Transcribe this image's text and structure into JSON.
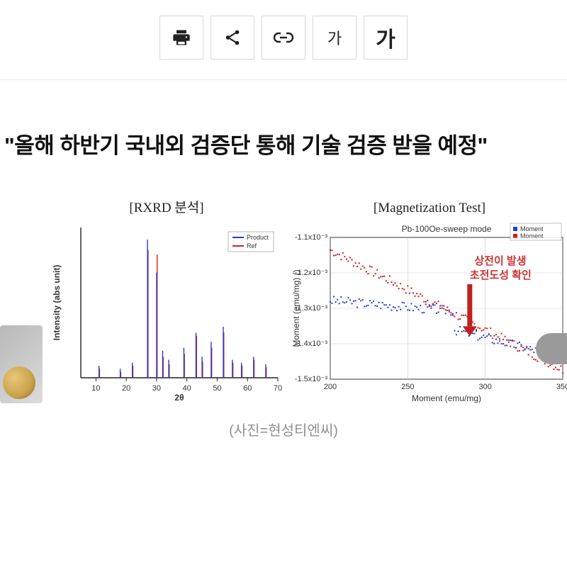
{
  "toolbar": {
    "print_label": "🖨",
    "share_label": "<",
    "link_label": "⊂⊃",
    "textsize_small": "가",
    "textsize_large": "가"
  },
  "headline": "\"올해 하반기 국내외 검증단 통해 기술 검증 받을 예정\"",
  "caption": "(사진=현성티엔씨)",
  "rxrd_chart": {
    "type": "line",
    "title": "[RXRD 분석]",
    "xlabel": "2θ",
    "ylabel": "Intensity (abs unit)",
    "xlim": [
      5,
      70
    ],
    "ylim": [
      0,
      100
    ],
    "xticks": [
      10,
      20,
      30,
      40,
      50,
      60,
      70
    ],
    "legend": [
      "Product",
      "Ref"
    ],
    "legend_colors": [
      "#2040d8",
      "#d82020"
    ],
    "peaks_blue": [
      {
        "x": 11,
        "h": 8
      },
      {
        "x": 18,
        "h": 6
      },
      {
        "x": 22,
        "h": 10
      },
      {
        "x": 27,
        "h": 92
      },
      {
        "x": 30,
        "h": 70
      },
      {
        "x": 32,
        "h": 18
      },
      {
        "x": 34,
        "h": 12
      },
      {
        "x": 39,
        "h": 20
      },
      {
        "x": 43,
        "h": 30
      },
      {
        "x": 45,
        "h": 14
      },
      {
        "x": 48,
        "h": 24
      },
      {
        "x": 52,
        "h": 34
      },
      {
        "x": 55,
        "h": 12
      },
      {
        "x": 58,
        "h": 10
      },
      {
        "x": 62,
        "h": 14
      },
      {
        "x": 66,
        "h": 9
      }
    ],
    "peaks_red": [
      {
        "x": 11,
        "h": 6
      },
      {
        "x": 18,
        "h": 4
      },
      {
        "x": 22,
        "h": 8
      },
      {
        "x": 27,
        "h": 85
      },
      {
        "x": 30,
        "h": 82
      },
      {
        "x": 32,
        "h": 14
      },
      {
        "x": 34,
        "h": 9
      },
      {
        "x": 39,
        "h": 16
      },
      {
        "x": 43,
        "h": 28
      },
      {
        "x": 45,
        "h": 11
      },
      {
        "x": 48,
        "h": 20
      },
      {
        "x": 52,
        "h": 30
      },
      {
        "x": 55,
        "h": 10
      },
      {
        "x": 58,
        "h": 8
      },
      {
        "x": 62,
        "h": 12
      },
      {
        "x": 66,
        "h": 7
      }
    ],
    "line_colors": {
      "blue": "#2040d8",
      "red": "#d82020"
    },
    "axis_color": "#222222",
    "background": "#ffffff"
  },
  "mag_chart": {
    "type": "scatter",
    "title": "[Magnetization Test]",
    "subtitle": "Pb-100Oe-sweep mode",
    "xlabel": "Moment (emu/mg)",
    "ylabel": "Moment (emu/mg) ()",
    "annotation_main": "상전이 발생",
    "annotation_sub": "초전도성 확인",
    "arrow_color": "#c02020",
    "xlim": [
      200,
      350
    ],
    "ylim": [
      -1.55,
      -1.1
    ],
    "xticks": [
      200,
      250,
      300,
      350
    ],
    "yticks": [
      "-1.1x10⁻³",
      "-1.2x10⁻³",
      "-1.3x10⁻³",
      "-1.4x10⁻³",
      "-1.5x10⁻³"
    ],
    "legend": [
      "Moment",
      "Moment"
    ],
    "legend_colors": [
      "#2040d0",
      "#d01818"
    ],
    "series_blue": {
      "start_y": -1.3,
      "end_y": -1.48,
      "noise": 0.015,
      "break_x": 280,
      "break_drop": 0.03,
      "color": "#2040d0"
    },
    "series_red": {
      "start_y": -1.14,
      "end_y": -1.52,
      "noise": 0.015,
      "color": "#d01818"
    },
    "grid_color": "#cccccc",
    "axis_color": "#222222",
    "background": "#ffffff"
  }
}
